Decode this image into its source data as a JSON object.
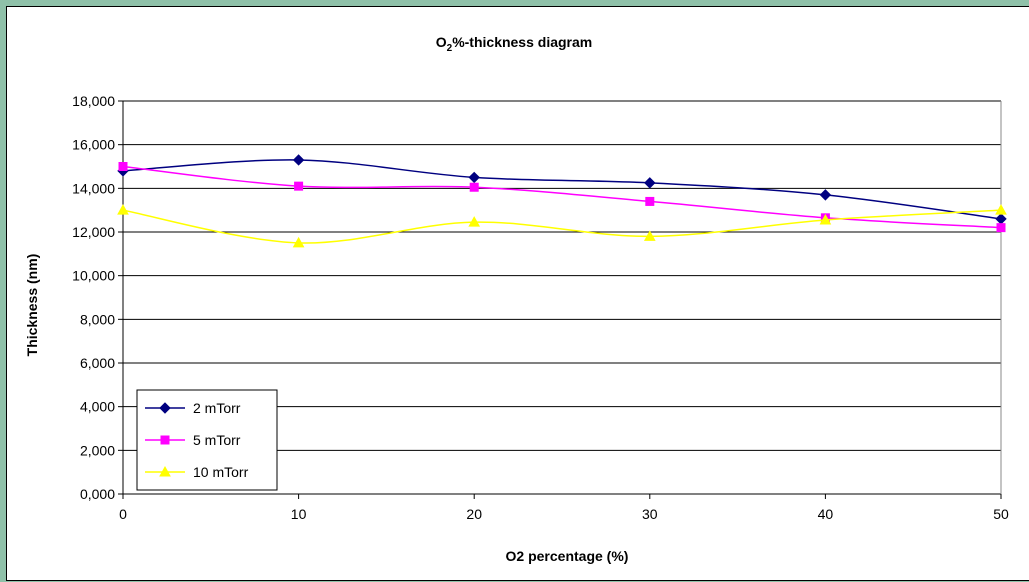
{
  "chart_data": {
    "type": "line",
    "title_main": "O",
    "title_sub": "2",
    "title_rest": "%-thickness diagram",
    "xlabel": "O2 percentage (%)",
    "ylabel": "Thickness (nm)",
    "x": [
      0,
      10,
      20,
      30,
      40,
      50
    ],
    "x_ticks": [
      "0",
      "10",
      "20",
      "30",
      "40",
      "50"
    ],
    "xlim": [
      0,
      50
    ],
    "ylim": [
      0,
      18000
    ],
    "y_ticks": [
      "0,000",
      "2,000",
      "4,000",
      "6,000",
      "8,000",
      "10,000",
      "12,000",
      "14,000",
      "16,000",
      "18,000"
    ],
    "grid": "horizontal",
    "legend_position": "bottom-left",
    "series": [
      {
        "name": "2 mTorr",
        "values": [
          14800,
          15300,
          14500,
          14250,
          13700,
          12600
        ],
        "color": "#000080",
        "marker": "diamond"
      },
      {
        "name": "5 mTorr",
        "values": [
          15000,
          14100,
          14050,
          13400,
          12650,
          12200
        ],
        "color": "#ff00ff",
        "marker": "square"
      },
      {
        "name": "10 mTorr",
        "values": [
          13000,
          11500,
          12450,
          11800,
          12550,
          13000
        ],
        "color": "#ffff00",
        "marker": "triangle"
      }
    ]
  }
}
